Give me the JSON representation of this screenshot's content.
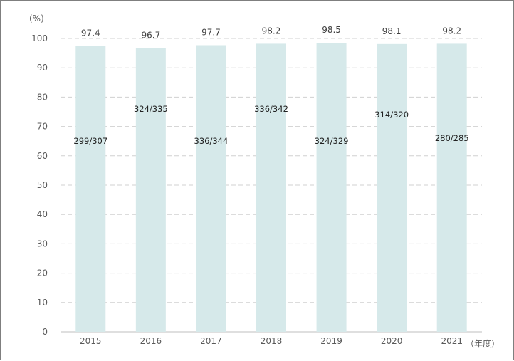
{
  "chart_data": {
    "type": "bar",
    "y_unit": "(%)",
    "x_unit": "（年度）",
    "categories": [
      "2015",
      "2016",
      "2017",
      "2018",
      "2019",
      "2020",
      "2021"
    ],
    "values": [
      97.4,
      96.7,
      97.7,
      98.2,
      98.5,
      98.1,
      98.2
    ],
    "ratio_labels": [
      "299/307",
      "324/335",
      "336/344",
      "336/342",
      "324/329",
      "314/320",
      "280/285"
    ],
    "ratio_label_levels": [
      65,
      76,
      65,
      76,
      65,
      74,
      66
    ],
    "ylim": [
      0,
      100
    ],
    "yticks": [
      0,
      10,
      20,
      30,
      40,
      50,
      60,
      70,
      80,
      90,
      100
    ],
    "grid": true,
    "bar_color": "#d6e9ea"
  }
}
